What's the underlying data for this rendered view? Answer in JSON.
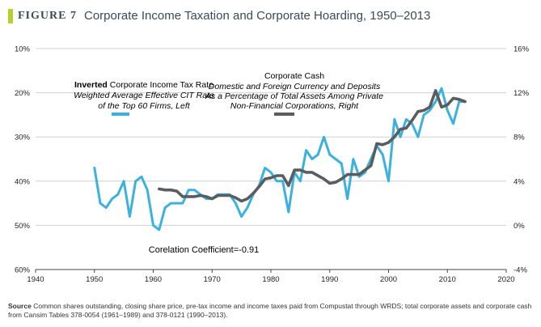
{
  "figure": {
    "label": "FIGURE 7",
    "title": "Corporate Income Taxation and Corporate Hoarding, 1950–2013"
  },
  "source": {
    "label": "Source",
    "text": "Common shares outstanding, closing share price, pre-tax income and income taxes paid from Compustat through WRDS; total corporate assets and corporate cash from Cansim Tables 378-0054 (1961–1989) and 378-0121 (1990–2013)."
  },
  "colors": {
    "tax_rate": "#3bb1de",
    "cash": "#5a5d60",
    "grid": "#d0d0d0",
    "accent": "#b9cf2a"
  },
  "chart_data": {
    "type": "line",
    "x_range": [
      1940,
      2020
    ],
    "x_ticks": [
      "1940",
      "1950",
      "1960",
      "1970",
      "1980",
      "1990",
      "2000",
      "2010",
      "2020"
    ],
    "left_axis": {
      "inverted": true,
      "range": [
        10,
        60
      ],
      "ticks": [
        "10%",
        "20%",
        "30%",
        "40%",
        "50%",
        "60%"
      ]
    },
    "right_axis": {
      "range": [
        -4,
        16
      ],
      "ticks": [
        "16%",
        "12%",
        "8%",
        "4%",
        "0%",
        "-4%"
      ]
    },
    "grid": "horizontal",
    "series": [
      {
        "name": "Inverted Corporate Income Tax Rate",
        "axis": "left",
        "color": "#3bb1de",
        "points": [
          [
            1950,
            37
          ],
          [
            1951,
            45
          ],
          [
            1952,
            46
          ],
          [
            1953,
            44
          ],
          [
            1954,
            43
          ],
          [
            1955,
            40
          ],
          [
            1956,
            48
          ],
          [
            1957,
            40
          ],
          [
            1958,
            39
          ],
          [
            1959,
            42
          ],
          [
            1960,
            50
          ],
          [
            1961,
            51
          ],
          [
            1962,
            46
          ],
          [
            1963,
            45
          ],
          [
            1964,
            45
          ],
          [
            1965,
            45
          ],
          [
            1966,
            42
          ],
          [
            1967,
            42
          ],
          [
            1968,
            43
          ],
          [
            1969,
            44
          ],
          [
            1970,
            44
          ],
          [
            1971,
            43
          ],
          [
            1972,
            43
          ],
          [
            1973,
            43
          ],
          [
            1974,
            45
          ],
          [
            1975,
            48
          ],
          [
            1976,
            46
          ],
          [
            1977,
            43
          ],
          [
            1978,
            41
          ],
          [
            1979,
            37
          ],
          [
            1980,
            38
          ],
          [
            1981,
            40
          ],
          [
            1982,
            40
          ],
          [
            1983,
            47
          ],
          [
            1984,
            38
          ],
          [
            1985,
            40
          ],
          [
            1986,
            33
          ],
          [
            1987,
            35
          ],
          [
            1988,
            34
          ],
          [
            1989,
            30
          ],
          [
            1990,
            34
          ],
          [
            1991,
            35
          ],
          [
            1992,
            36
          ],
          [
            1993,
            44
          ],
          [
            1994,
            35
          ],
          [
            1995,
            39
          ],
          [
            1996,
            38
          ],
          [
            1997,
            35
          ],
          [
            1998,
            32
          ],
          [
            1999,
            34
          ],
          [
            2000,
            40
          ],
          [
            2001,
            26
          ],
          [
            2002,
            30
          ],
          [
            2003,
            26
          ],
          [
            2004,
            27
          ],
          [
            2005,
            30
          ],
          [
            2006,
            25
          ],
          [
            2007,
            24
          ],
          [
            2008,
            22
          ],
          [
            2009,
            19
          ],
          [
            2010,
            24
          ],
          [
            2011,
            27
          ],
          [
            2012,
            22
          ],
          [
            2013,
            22
          ]
        ]
      },
      {
        "name": "Corporate Cash",
        "axis": "right",
        "color": "#5a5d60",
        "points": [
          [
            1961,
            3.3
          ],
          [
            1962,
            3.2
          ],
          [
            1963,
            3.2
          ],
          [
            1964,
            3.1
          ],
          [
            1965,
            2.6
          ],
          [
            1966,
            2.6
          ],
          [
            1967,
            2.6
          ],
          [
            1968,
            2.7
          ],
          [
            1969,
            2.6
          ],
          [
            1970,
            2.4
          ],
          [
            1971,
            2.7
          ],
          [
            1972,
            2.7
          ],
          [
            1973,
            2.7
          ],
          [
            1974,
            2.5
          ],
          [
            1975,
            2.2
          ],
          [
            1976,
            2.4
          ],
          [
            1977,
            2.9
          ],
          [
            1978,
            3.5
          ],
          [
            1979,
            4.2
          ],
          [
            1980,
            4.3
          ],
          [
            1981,
            4.5
          ],
          [
            1982,
            4.5
          ],
          [
            1983,
            3.6
          ],
          [
            1984,
            5.0
          ],
          [
            1985,
            5.0
          ],
          [
            1986,
            4.8
          ],
          [
            1987,
            4.8
          ],
          [
            1988,
            4.5
          ],
          [
            1989,
            4.2
          ],
          [
            1990,
            3.8
          ],
          [
            1991,
            3.9
          ],
          [
            1992,
            4.2
          ],
          [
            1993,
            4.6
          ],
          [
            1994,
            4.6
          ],
          [
            1995,
            4.6
          ],
          [
            1996,
            5.0
          ],
          [
            1997,
            5.4
          ],
          [
            1998,
            7.4
          ],
          [
            1999,
            7.3
          ],
          [
            2000,
            7.5
          ],
          [
            2001,
            8.0
          ],
          [
            2002,
            8.7
          ],
          [
            2003,
            8.8
          ],
          [
            2004,
            9.5
          ],
          [
            2005,
            10.3
          ],
          [
            2006,
            10.4
          ],
          [
            2007,
            10.7
          ],
          [
            2008,
            12.2
          ],
          [
            2009,
            10.7
          ],
          [
            2010,
            10.9
          ],
          [
            2011,
            11.5
          ],
          [
            2012,
            11.4
          ],
          [
            2013,
            11.2
          ]
        ]
      }
    ],
    "legend": {
      "tax": {
        "title_bold": "Inverted",
        "title_rest": " Corporate Income Tax Rate",
        "line2": "Weighted Average Effective CIT Rate",
        "line3": "of the Top 60 Firms, Left"
      },
      "cash": {
        "title": "Corporate Cash",
        "line2": "Domestic and Foreign Currency and Deposits",
        "line3": "As a Percentage of Total Assets Among Private",
        "line4": "Non-Financial Corporations, Right"
      }
    },
    "annotation": "Corelation Coefficient=-0.91"
  }
}
